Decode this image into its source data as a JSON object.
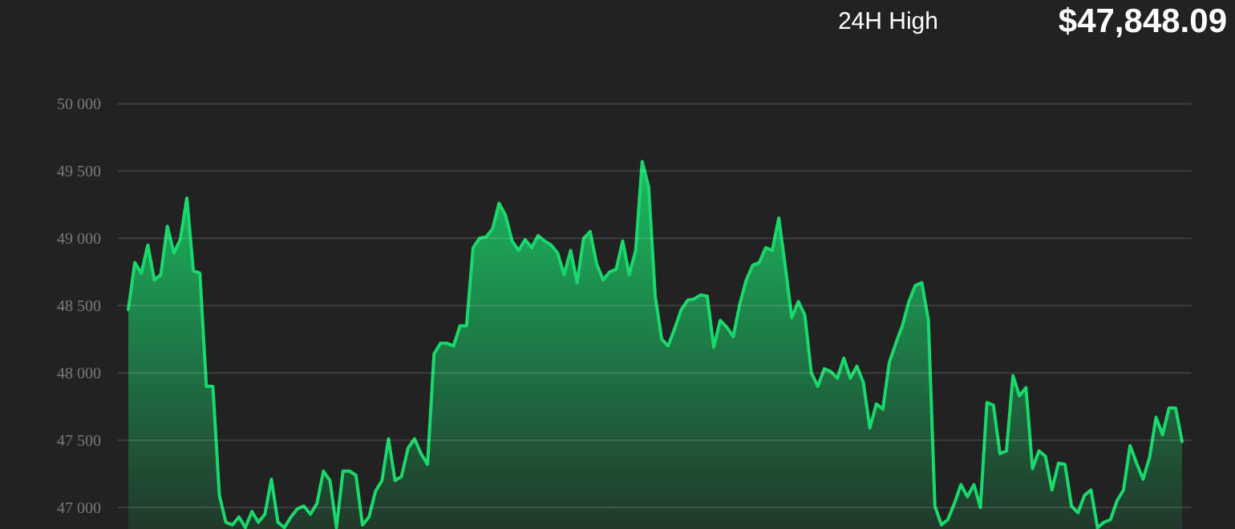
{
  "chart_data": {
    "type": "area",
    "annotations": [
      "24H High",
      "$47,848.09"
    ],
    "color": "#19d86c",
    "grid": "y",
    "ylim": [
      46840,
      50000
    ],
    "yticks": [
      {
        "value": 47000,
        "label": "47 000"
      },
      {
        "value": 47500,
        "label": "47 500"
      },
      {
        "value": 48000,
        "label": "48 000"
      },
      {
        "value": 48500,
        "label": "48 500"
      },
      {
        "value": 49000,
        "label": "49 000"
      },
      {
        "value": 49500,
        "label": "49 500"
      },
      {
        "value": 50000,
        "label": "50 000"
      }
    ],
    "values": [
      48470,
      48820,
      48740,
      48950,
      48690,
      48730,
      49090,
      48890,
      48990,
      49300,
      48760,
      48740,
      47900,
      47900,
      47090,
      46890,
      46870,
      46930,
      46850,
      46970,
      46890,
      46950,
      47210,
      46890,
      46850,
      46930,
      46990,
      47010,
      46950,
      47030,
      47270,
      47200,
      46850,
      47270,
      47270,
      47240,
      46870,
      46930,
      47120,
      47200,
      47510,
      47200,
      47230,
      47440,
      47510,
      47400,
      47320,
      48140,
      48220,
      48220,
      48200,
      48350,
      48350,
      48930,
      49000,
      49010,
      49070,
      49260,
      49170,
      48980,
      48910,
      48990,
      48930,
      49020,
      48980,
      48950,
      48890,
      48730,
      48910,
      48670,
      49000,
      49050,
      48810,
      48690,
      48750,
      48770,
      48980,
      48730,
      48910,
      49570,
      49380,
      48570,
      48250,
      48200,
      48330,
      48470,
      48540,
      48550,
      48580,
      48570,
      48190,
      48390,
      48340,
      48270,
      48510,
      48690,
      48800,
      48820,
      48930,
      48910,
      49150,
      48790,
      48410,
      48530,
      48430,
      48000,
      47900,
      48030,
      48010,
      47960,
      48110,
      47960,
      48050,
      47930,
      47590,
      47770,
      47730,
      48080,
      48220,
      48350,
      48530,
      48650,
      48670,
      48390,
      47010,
      46870,
      46910,
      47030,
      47170,
      47080,
      47170,
      47000,
      47780,
      47760,
      47400,
      47420,
      47980,
      47830,
      47890,
      47290,
      47420,
      47380,
      47130,
      47330,
      47320,
      47010,
      46960,
      47090,
      47130,
      46850,
      46890,
      46910,
      47050,
      47130,
      47460,
      47330,
      47210,
      47370,
      47670,
      47540,
      47740,
      47740,
      47490
    ],
    "categories": [
      null,
      null,
      null,
      null,
      null,
      null,
      null,
      null,
      null,
      null,
      null,
      null,
      null,
      null,
      null,
      null,
      null,
      null,
      null,
      null,
      null,
      null,
      null,
      null,
      null,
      null,
      null,
      null,
      null,
      null,
      null,
      null,
      null,
      null,
      null,
      null,
      null,
      null,
      null,
      null,
      null,
      null,
      null,
      null,
      null,
      null,
      null,
      null,
      null,
      null,
      null,
      null,
      null,
      null,
      null,
      null,
      null,
      null,
      null,
      null,
      null,
      null,
      null,
      null,
      null,
      null,
      null,
      null,
      null,
      null,
      null,
      null,
      null,
      null,
      null,
      null,
      null,
      null,
      null,
      null,
      null,
      null,
      null,
      null,
      null,
      null,
      null,
      null,
      null,
      null,
      null,
      null,
      null,
      null,
      null,
      null,
      null,
      null,
      null,
      null,
      null,
      null,
      null,
      null,
      null,
      null,
      null,
      null,
      null,
      null,
      null,
      null,
      null,
      null,
      null,
      null,
      null,
      null,
      null,
      null,
      null,
      null,
      null,
      null,
      null,
      null,
      null,
      null,
      null,
      null,
      null,
      null,
      null,
      null,
      null,
      null,
      null,
      null,
      null,
      null,
      null,
      null,
      null,
      null,
      null,
      null,
      null,
      null,
      null,
      null,
      null,
      null,
      null,
      null,
      null,
      null,
      null,
      null,
      null,
      null,
      null,
      null,
      null
    ]
  }
}
